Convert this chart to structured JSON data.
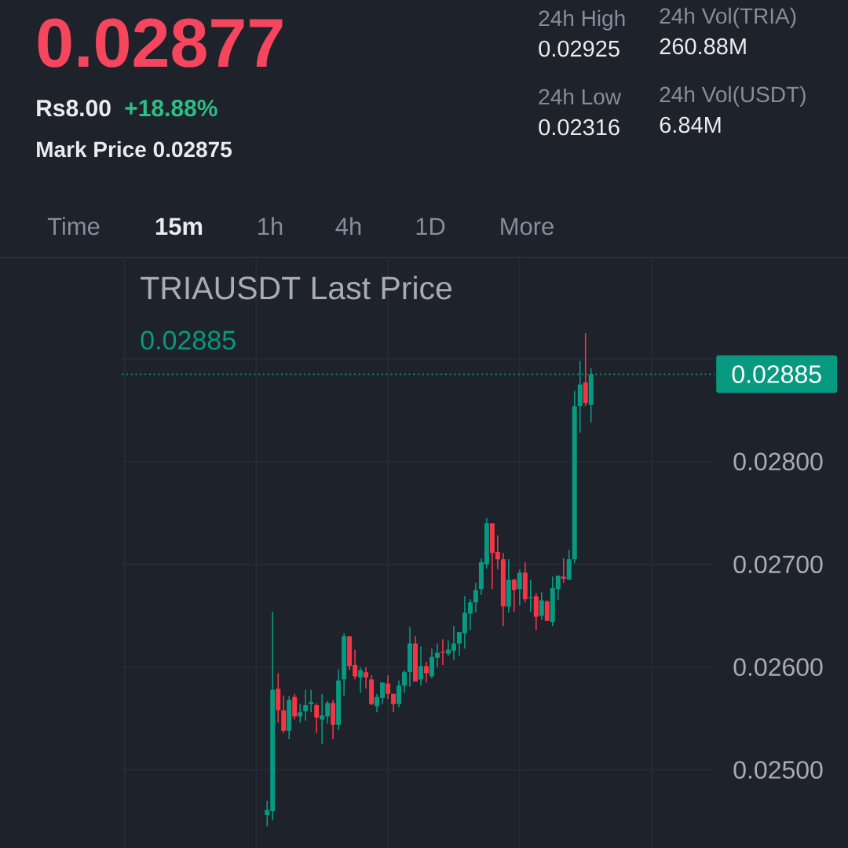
{
  "chart_data": {
    "type": "candlestick",
    "title": "TRIAUSDT Last Price",
    "categories": [
      null,
      null,
      null,
      null,
      null,
      null,
      null,
      null,
      null,
      null,
      null,
      null,
      null,
      null,
      null,
      null,
      null,
      null,
      null,
      null,
      null,
      null,
      null,
      null,
      null,
      null,
      null,
      null,
      null,
      null,
      null,
      null,
      null,
      null,
      null,
      null,
      null,
      null,
      null,
      null,
      null,
      null,
      null,
      null,
      null,
      null,
      null,
      null,
      null,
      null,
      null,
      null,
      null,
      null,
      null,
      null,
      null,
      null,
      null,
      null,
      null,
      null,
      null,
      null,
      null,
      null,
      null,
      null,
      null,
      null,
      null,
      null,
      null,
      null,
      null,
      null,
      null,
      null,
      null,
      null,
      null,
      null,
      null,
      null,
      null,
      null,
      null,
      null,
      null,
      null,
      null,
      null,
      null,
      null,
      null,
      null,
      null,
      null,
      null,
      null,
      null,
      null,
      null,
      null,
      null,
      null,
      null,
      null
    ],
    "ohlc": [
      null,
      null,
      null,
      null,
      null,
      null,
      null,
      null,
      null,
      null,
      null,
      null,
      null,
      null,
      null,
      null,
      null,
      null,
      null,
      null,
      null,
      null,
      null,
      null,
      null,
      null,
      [
        0.02456,
        0.0247,
        0.02445,
        0.02461
      ],
      [
        0.0246,
        0.02654,
        0.02451,
        0.02578
      ],
      [
        0.02579,
        0.02594,
        0.02546,
        0.02558
      ],
      [
        0.02558,
        0.02572,
        0.02536,
        0.02538
      ],
      [
        0.02538,
        0.02572,
        0.0253,
        0.02568
      ],
      [
        0.02571,
        0.02574,
        0.02549,
        0.02552
      ],
      [
        0.02552,
        0.02564,
        0.02546,
        0.02556
      ],
      [
        0.02557,
        0.02578,
        0.02548,
        0.02563
      ],
      [
        0.02564,
        0.02578,
        0.02556,
        0.02566
      ],
      [
        0.02563,
        0.02565,
        0.02536,
        0.02551
      ],
      [
        0.02549,
        0.02574,
        0.02525,
        0.02553
      ],
      [
        0.02552,
        0.02567,
        0.02545,
        0.02565
      ],
      [
        0.02565,
        0.02568,
        0.0253,
        0.02544
      ],
      [
        0.02544,
        0.02598,
        0.02539,
        0.02587
      ],
      [
        0.02588,
        0.02633,
        0.02572,
        0.0263
      ],
      [
        0.0263,
        0.0263,
        0.02597,
        0.02601
      ],
      [
        0.02602,
        0.02617,
        0.02588,
        0.02591
      ],
      [
        0.0259,
        0.026,
        0.02575,
        0.02597
      ],
      [
        0.02595,
        0.026,
        0.02579,
        0.0259
      ],
      [
        0.02588,
        0.02592,
        0.02563,
        0.02564
      ],
      [
        0.02562,
        0.02574,
        0.02556,
        0.02571
      ],
      [
        0.0257,
        0.02585,
        0.02564,
        0.02585
      ],
      [
        0.02584,
        0.02592,
        0.02569,
        0.02574
      ],
      [
        0.02574,
        0.02574,
        0.02556,
        0.02564
      ],
      [
        0.02564,
        0.02587,
        0.02561,
        0.02582
      ],
      [
        0.02582,
        0.02597,
        0.02575,
        0.02595
      ],
      [
        0.02595,
        0.02639,
        0.02581,
        0.02623
      ],
      [
        0.02623,
        0.0263,
        0.02586,
        0.02586
      ],
      [
        0.02588,
        0.0262,
        0.02582,
        0.02601
      ],
      [
        0.02601,
        0.02605,
        0.02585,
        0.02594
      ],
      [
        0.02591,
        0.02618,
        0.02589,
        0.0261
      ],
      [
        0.02609,
        0.02623,
        0.026,
        0.02614
      ],
      [
        0.02615,
        0.02627,
        0.02602,
        0.02614
      ],
      [
        0.02613,
        0.02626,
        0.02611,
        0.02617
      ],
      [
        0.02616,
        0.0264,
        0.02607,
        0.02623
      ],
      [
        0.02623,
        0.02634,
        0.02611,
        0.02634
      ],
      [
        0.02633,
        0.02669,
        0.02618,
        0.02653
      ],
      [
        0.02652,
        0.02666,
        0.02636,
        0.02663
      ],
      [
        0.02663,
        0.02682,
        0.02653,
        0.02675
      ],
      [
        0.02676,
        0.02706,
        0.0267,
        0.02702
      ],
      [
        0.027,
        0.02745,
        0.02696,
        0.0274
      ],
      [
        0.0274,
        0.0274,
        0.02676,
        0.02711
      ],
      [
        0.02712,
        0.02728,
        0.02695,
        0.02705
      ],
      [
        0.02705,
        0.02711,
        0.0264,
        0.02659
      ],
      [
        0.02659,
        0.02705,
        0.02653,
        0.02685
      ],
      [
        0.02685,
        0.02686,
        0.02654,
        0.02675
      ],
      [
        0.02676,
        0.02695,
        0.0266,
        0.02692
      ],
      [
        0.02692,
        0.02702,
        0.02663,
        0.02666
      ],
      [
        0.02667,
        0.02685,
        0.02654,
        0.02668
      ],
      [
        0.02669,
        0.02672,
        0.02636,
        0.02649
      ],
      [
        0.0265,
        0.02673,
        0.02646,
        0.02665
      ],
      [
        0.02664,
        0.02665,
        0.02645,
        0.02645
      ],
      [
        0.02644,
        0.02688,
        0.0264,
        0.02677
      ],
      [
        0.02676,
        0.02689,
        0.02665,
        0.02689
      ],
      [
        0.02688,
        0.02706,
        0.02682,
        0.02686
      ],
      [
        0.02685,
        0.02714,
        0.02685,
        0.02705
      ],
      [
        0.02705,
        0.02869,
        0.02701,
        0.02854
      ],
      [
        0.02854,
        0.02898,
        0.02828,
        0.02875
      ],
      [
        0.02877,
        0.02925,
        0.02854,
        0.02857
      ],
      [
        0.02855,
        0.02891,
        0.02838,
        0.02885
      ],
      null,
      null,
      null,
      null,
      null,
      null,
      null,
      null,
      null,
      null,
      null,
      null,
      null,
      null,
      null,
      null,
      null,
      null,
      null,
      null,
      null,
      null
    ],
    "colors": [
      null,
      null,
      null,
      null,
      null,
      null,
      null,
      null,
      null,
      null,
      null,
      null,
      null,
      null,
      null,
      null,
      null,
      null,
      null,
      null,
      null,
      null,
      null,
      null,
      null,
      null,
      "#089981",
      "#089981",
      "#F23645",
      "#F23645",
      "#089981",
      "#F23645",
      "#089981",
      "#089981",
      "#089981",
      "#F23645",
      "#089981",
      "#089981",
      "#F23645",
      "#089981",
      "#089981",
      "#F23645",
      "#F23645",
      "#089981",
      "#F23645",
      "#F23645",
      "#089981",
      "#089981",
      "#F23645",
      "#F23645",
      "#089981",
      "#089981",
      "#089981",
      "#F23645",
      "#089981",
      "#F23645",
      "#089981",
      "#089981",
      "#F23645",
      "#089981",
      "#089981",
      "#089981",
      "#089981",
      "#089981",
      "#089981",
      "#089981",
      "#089981",
      "#F23645",
      "#F23645",
      "#F23645",
      "#089981",
      "#F23645",
      "#089981",
      "#F23645",
      "#089981",
      "#F23645",
      "#089981",
      "#F23645",
      "#089981",
      "#089981",
      "#F23645",
      "#089981",
      "#089981",
      "#089981",
      "#F23645",
      "#089981",
      null,
      null,
      null,
      null,
      null,
      null,
      null,
      null,
      null,
      null,
      null,
      null,
      null,
      null,
      null,
      null,
      null,
      null,
      null,
      null,
      null,
      null
    ],
    "ylim": [
      0.02424,
      0.02997
    ],
    "yticks": [
      {
        "value": 0.025,
        "label": "0.02500"
      },
      {
        "value": 0.026,
        "label": "0.02600"
      },
      {
        "value": 0.027,
        "label": "0.02700"
      },
      {
        "value": 0.028,
        "label": "0.02800"
      },
      {
        "value": 0.029,
        "label": null
      }
    ],
    "grid": true,
    "tick_labels": "y",
    "ref_lines": [
      {
        "axis": "y",
        "value": 0.02885,
        "label": "0.02885",
        "color": "#089981",
        "line_style": "dotted"
      }
    ],
    "annotations": [
      "0.02877",
      "Rs8.00",
      "+18.88%",
      "Mark Price 0.02875",
      "24h High",
      "0.02925",
      "24h Low",
      "0.02316",
      "24h Vol(TRIA)",
      "260.88M",
      "24h Vol(USDT)",
      "6.84M",
      "Time",
      "15m",
      "1h",
      "4h",
      "1D",
      "More",
      "0.02885"
    ]
  }
}
